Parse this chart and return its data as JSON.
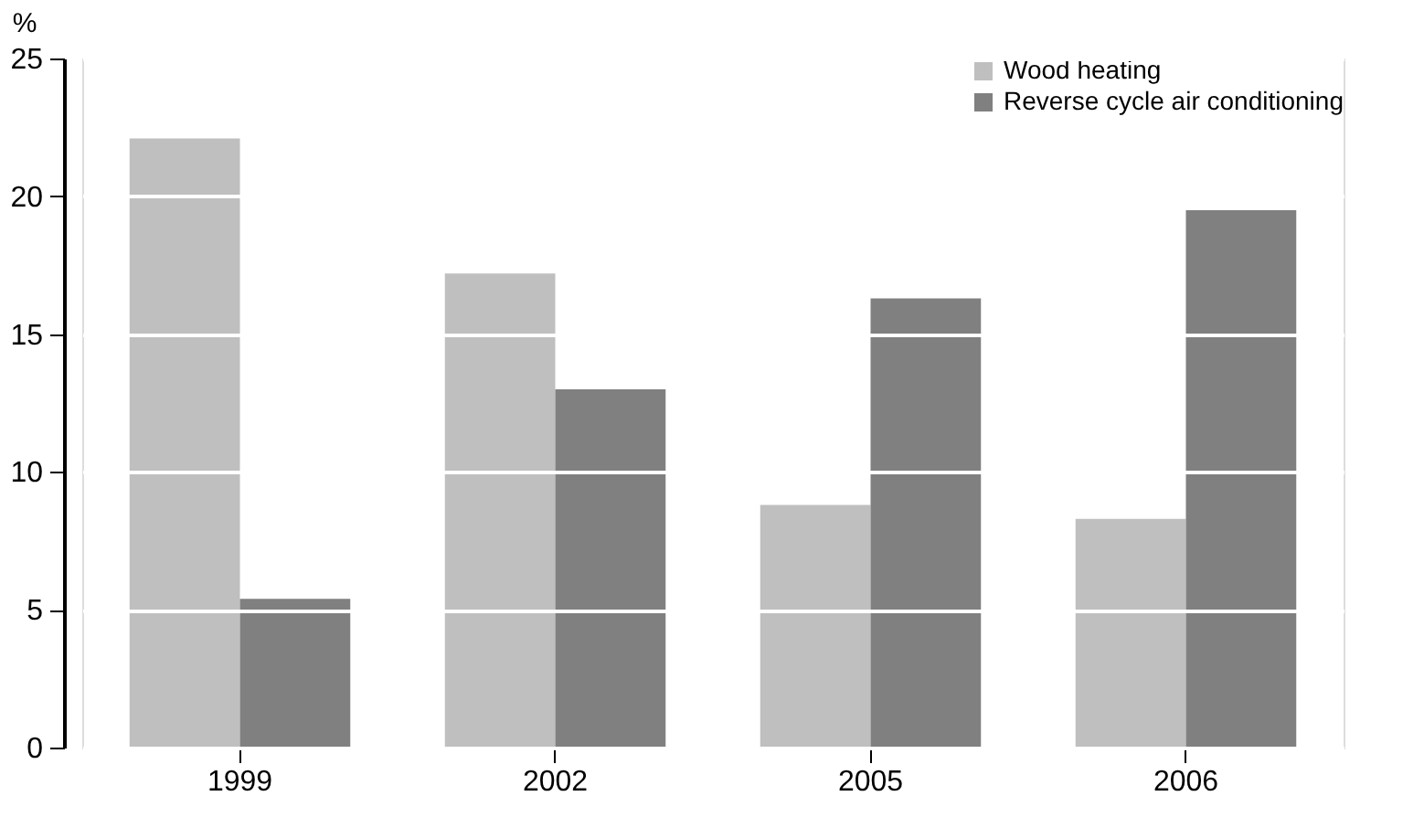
{
  "chart_data": {
    "type": "bar",
    "ylabel": "%",
    "categories": [
      "1999",
      "2002",
      "2005",
      "2006"
    ],
    "series": [
      {
        "name": "Wood heating",
        "color": "#bfbfbf",
        "values": [
          22.1,
          17.2,
          8.8,
          8.3
        ]
      },
      {
        "name": "Reverse cycle air conditioning",
        "color": "#808080",
        "values": [
          5.4,
          13.0,
          16.3,
          19.5
        ]
      }
    ],
    "ylim": [
      0,
      25
    ],
    "yticks": [
      0,
      5,
      10,
      15,
      20,
      25
    ],
    "grid": "y",
    "legend": "top right"
  }
}
